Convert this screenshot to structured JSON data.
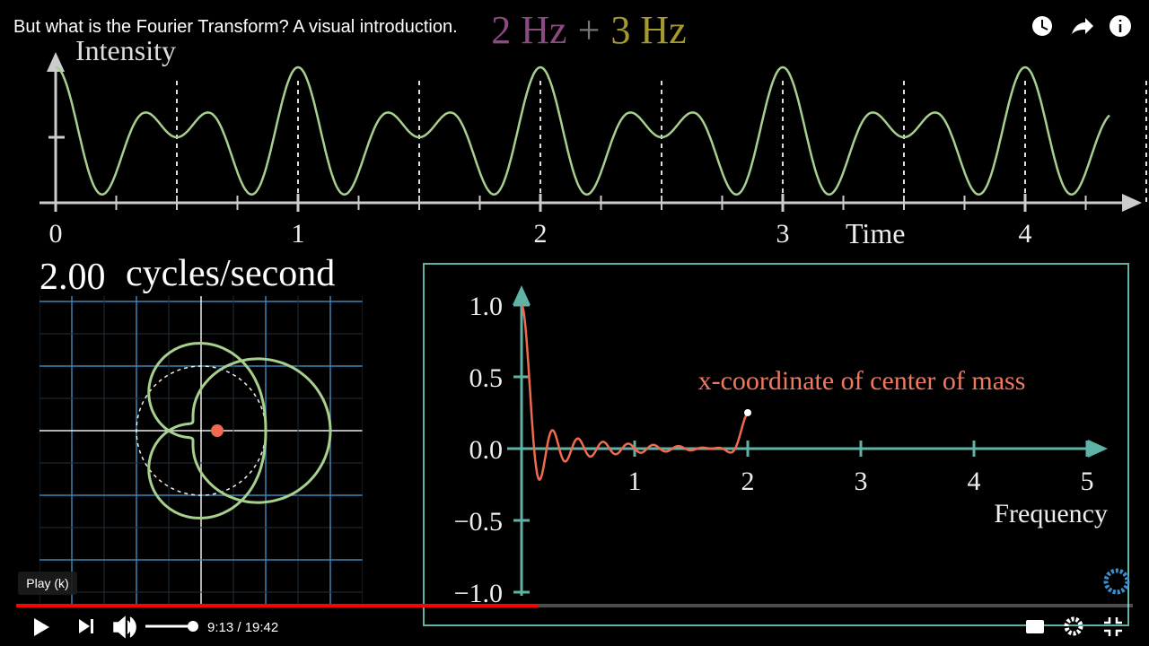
{
  "video": {
    "title": "But what is the Fourier Transform? A visual introduction.",
    "tooltip": "Play (k)",
    "time": "9:13 / 19:42"
  },
  "scene": {
    "heading": [
      "2 Hz",
      "+",
      "3 Hz"
    ],
    "signal": {
      "y_label": "Intensity",
      "x_label": "Time",
      "xticks": [
        0,
        1,
        2,
        3,
        4
      ]
    },
    "winding": {
      "frequency": {
        "value": 2,
        "label": "2.00"
      },
      "unit": "cycles/second"
    },
    "transform": {
      "annotation": "x-coordinate of center of mass",
      "x_label": "Frequency",
      "xticks": [
        1,
        2,
        3,
        4,
        5
      ],
      "yticks": [
        {
          "value": 1,
          "label": "1.0"
        },
        {
          "value": 0.5,
          "label": "0.5"
        },
        {
          "value": 0,
          "label": "0.0"
        },
        {
          "value": -0.5,
          "label": "−0.5"
        },
        {
          "value": -1,
          "label": "−1.0"
        }
      ]
    }
  }
}
